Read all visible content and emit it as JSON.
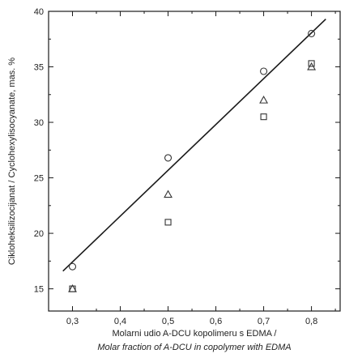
{
  "chart_data": {
    "type": "scatter",
    "xlabel": "Molarni udio A-DCU kopolimeru s EDMA /",
    "xlabel_en": "Molar fraction of A-DCU in copolymer with EDMA",
    "ylabel": "Cikloheksilizocijanat / Cyclohexylisocyanate, mas. %",
    "xlim": [
      0.25,
      0.86
    ],
    "ylim": [
      13,
      40
    ],
    "x_ticks": [
      "0,3",
      "0,4",
      "0,5",
      "0,6",
      "0,7",
      "0,8"
    ],
    "x_tick_values": [
      0.3,
      0.4,
      0.5,
      0.6,
      0.7,
      0.8
    ],
    "y_ticks": [
      "15",
      "20",
      "25",
      "30",
      "35",
      "40"
    ],
    "y_tick_values": [
      15,
      20,
      25,
      30,
      35,
      40
    ],
    "grid": false,
    "legend": "none",
    "series": [
      {
        "marker": "circle",
        "x": [
          0.3,
          0.5,
          0.7,
          0.8
        ],
        "y": [
          17.0,
          26.8,
          34.6,
          38.0
        ]
      },
      {
        "marker": "triangle",
        "x": [
          0.3,
          0.5,
          0.7,
          0.8
        ],
        "y": [
          15.0,
          23.5,
          32.0,
          35.0
        ]
      },
      {
        "marker": "square",
        "x": [
          0.3,
          0.5,
          0.7,
          0.8
        ],
        "y": [
          15.0,
          21.0,
          30.5,
          35.3
        ]
      }
    ],
    "fit_line": {
      "x": [
        0.28,
        0.83
      ],
      "y": [
        16.6,
        39.3
      ]
    }
  },
  "style": {
    "ink": "#1a1a1a",
    "marker_color": "#333333"
  }
}
